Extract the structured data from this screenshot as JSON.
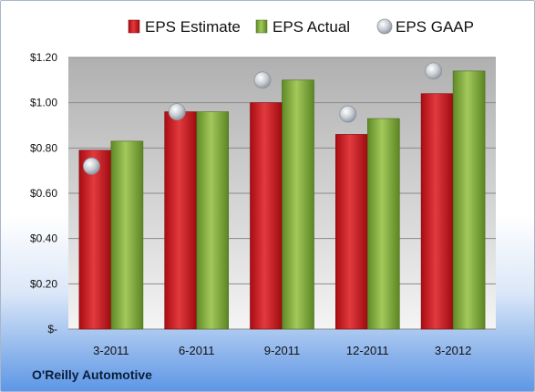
{
  "footer": {
    "company": "O'Reilly Automotive"
  },
  "colors": {
    "estimate": "#c8161c",
    "actual": "#7fa53a",
    "gaap": "#b8bec6",
    "plot_bg_top": "#b4b4b4",
    "plot_bg_bottom": "#f2f2f2"
  },
  "chart_data": {
    "type": "bar",
    "categories": [
      "3-2011",
      "6-2011",
      "9-2011",
      "12-2011",
      "3-2012"
    ],
    "series": [
      {
        "name": "EPS Estimate",
        "kind": "bar",
        "values": [
          0.79,
          0.96,
          1.0,
          0.86,
          1.04
        ]
      },
      {
        "name": "EPS Actual",
        "kind": "bar",
        "values": [
          0.83,
          0.96,
          1.1,
          0.93,
          1.14
        ]
      },
      {
        "name": "EPS GAAP",
        "kind": "marker",
        "values": [
          0.72,
          0.96,
          1.1,
          0.95,
          1.14
        ]
      }
    ],
    "yticks": [
      "$-",
      "$0.20",
      "$0.40",
      "$0.60",
      "$0.80",
      "$1.00",
      "$1.20"
    ],
    "ylim": [
      0,
      1.2
    ],
    "grid": true,
    "legend": "top"
  }
}
